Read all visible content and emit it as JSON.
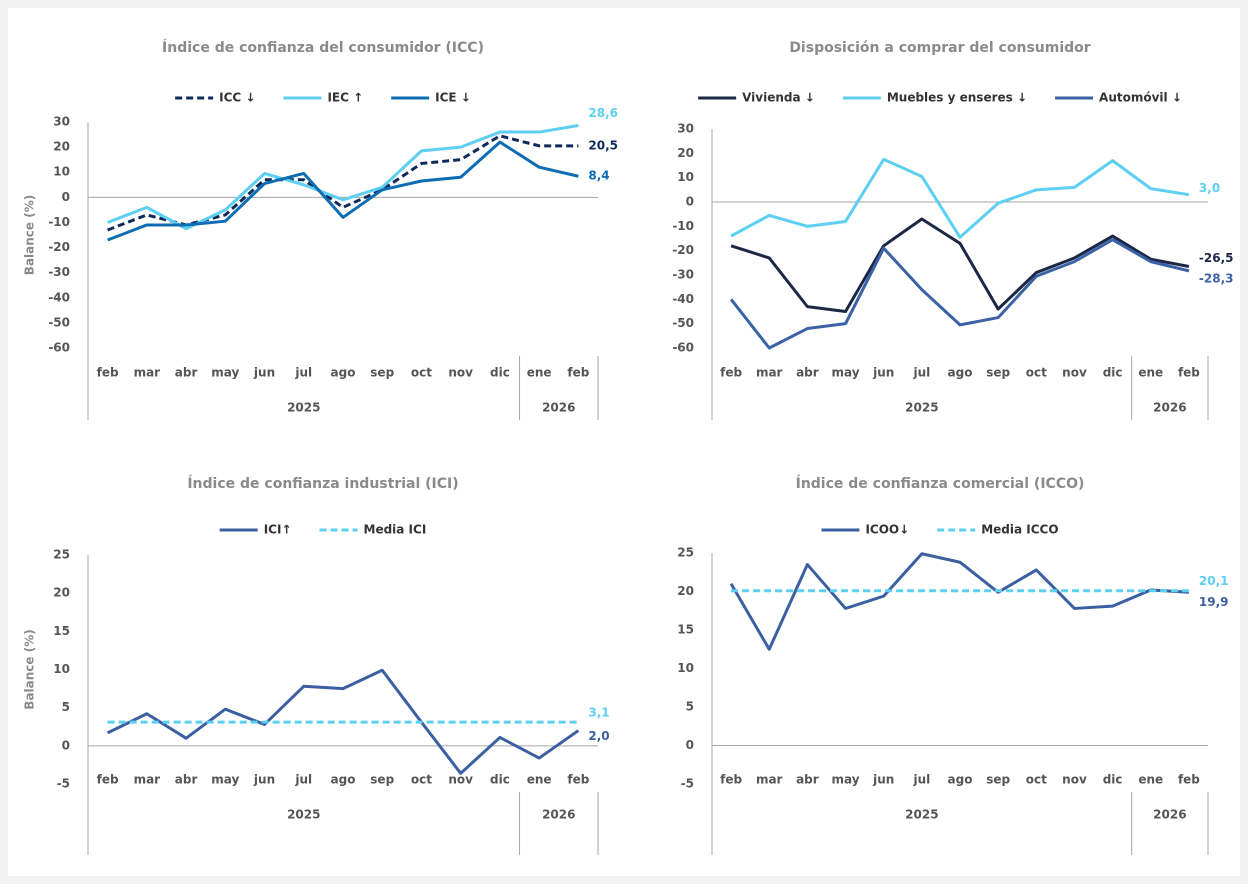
{
  "chart_data": [
    {
      "type": "line",
      "title": "Índice de confianza del consumidor (ICC)",
      "y_label": "Balance (%)",
      "categories": [
        "feb",
        "mar",
        "abr",
        "may",
        "jun",
        "jul",
        "ago",
        "sep",
        "oct",
        "nov",
        "dic",
        "ene",
        "feb"
      ],
      "x_groups": [
        {
          "label": "2025",
          "size": 11
        },
        {
          "label": "2026",
          "size": 2
        }
      ],
      "ylim": [
        -60,
        30
      ],
      "yticks": [
        -60,
        -50,
        -40,
        -30,
        -20,
        -10,
        0,
        10,
        20,
        30
      ],
      "series": [
        {
          "name": "ICC ↓",
          "color": "#0e2a5a",
          "dashed": true,
          "values": [
            -13,
            -7,
            -11,
            -7,
            7,
            7,
            -4,
            3,
            13.5,
            15,
            24.5,
            20.5,
            20.5
          ],
          "value_labels": [
            null,
            null,
            null,
            null,
            null,
            null,
            null,
            null,
            null,
            null,
            null,
            null,
            "20,5"
          ]
        },
        {
          "name": "IEC ↑",
          "color": "#5ccff2",
          "dashed": false,
          "values": [
            -10,
            -4,
            -12.5,
            -5,
            9.5,
            5,
            -1,
            4,
            18.5,
            20,
            26,
            26,
            28.6
          ],
          "value_labels": [
            null,
            null,
            null,
            null,
            null,
            null,
            null,
            null,
            null,
            null,
            null,
            null,
            "28,6"
          ]
        },
        {
          "name": "ICE ↓",
          "color": "#0d6db3",
          "dashed": false,
          "values": [
            -17,
            -11,
            -11,
            -9.5,
            5.5,
            9.5,
            -8,
            3,
            6.5,
            8,
            22,
            12,
            8.4
          ],
          "value_labels": [
            null,
            null,
            null,
            null,
            null,
            null,
            null,
            null,
            null,
            null,
            null,
            null,
            "8,4"
          ]
        }
      ]
    },
    {
      "type": "line",
      "title": "Disposición a comprar del consumidor",
      "categories": [
        "feb",
        "mar",
        "abr",
        "may",
        "jun",
        "jul",
        "ago",
        "sep",
        "oct",
        "nov",
        "dic",
        "ene",
        "feb"
      ],
      "x_groups": [
        {
          "label": "2025",
          "size": 11
        },
        {
          "label": "2026",
          "size": 2
        }
      ],
      "ylim": [
        -60,
        30
      ],
      "yticks": [
        -60,
        -50,
        -40,
        -30,
        -20,
        -10,
        0,
        10,
        20,
        30
      ],
      "series": [
        {
          "name": "Vivienda ↓",
          "color": "#1c2745",
          "dashed": false,
          "values": [
            -18,
            -23,
            -43,
            -45,
            -18,
            -7,
            -17,
            -44,
            -29,
            -23,
            -14,
            -23.5,
            -26.5
          ],
          "value_labels": [
            null,
            null,
            null,
            null,
            null,
            null,
            null,
            null,
            null,
            null,
            null,
            null,
            "-26,5"
          ]
        },
        {
          "name": "Muebles y enseres ↓",
          "color": "#5ccff2",
          "dashed": false,
          "values": [
            -14,
            -5.5,
            -10,
            -8,
            17.5,
            10.5,
            -14.5,
            -0.5,
            5,
            6,
            17,
            5.5,
            3.0
          ],
          "value_labels": [
            null,
            null,
            null,
            null,
            null,
            null,
            null,
            null,
            null,
            null,
            null,
            null,
            "3,0"
          ]
        },
        {
          "name": "Automóvil ↓",
          "color": "#3b62a6",
          "dashed": false,
          "values": [
            -40,
            -60,
            -52,
            -50,
            -19,
            -36,
            -50.5,
            -47.5,
            -30.5,
            -24.5,
            -15.5,
            -24.5,
            -28.3
          ],
          "value_labels": [
            null,
            null,
            null,
            null,
            null,
            null,
            null,
            null,
            null,
            null,
            null,
            null,
            "-28,3"
          ]
        }
      ]
    },
    {
      "type": "line",
      "title": "Índice de confianza industrial (ICI)",
      "y_label": "Balance (%)",
      "categories": [
        "feb",
        "mar",
        "abr",
        "may",
        "jun",
        "jul",
        "ago",
        "sep",
        "oct",
        "nov",
        "dic",
        "ene",
        "feb"
      ],
      "x_groups": [
        {
          "label": "2025",
          "size": 11
        },
        {
          "label": "2026",
          "size": 2
        }
      ],
      "ylim": [
        -5,
        25
      ],
      "yticks": [
        -5,
        0,
        5,
        10,
        15,
        20,
        25
      ],
      "series": [
        {
          "name": "ICI↑",
          "color": "#3b5fa0",
          "dashed": false,
          "values": [
            1.7,
            4.2,
            1.0,
            4.8,
            2.8,
            7.8,
            7.5,
            9.9,
            3.1,
            -3.6,
            1.1,
            -1.6,
            2.0
          ],
          "value_labels": [
            null,
            null,
            null,
            null,
            null,
            null,
            null,
            null,
            null,
            null,
            null,
            null,
            "2,0"
          ]
        },
        {
          "name": "Media ICI",
          "color": "#5ccff2",
          "dashed": true,
          "values": [
            3.1,
            3.1,
            3.1,
            3.1,
            3.1,
            3.1,
            3.1,
            3.1,
            3.1,
            3.1,
            3.1,
            3.1,
            3.1
          ],
          "value_labels": [
            null,
            null,
            null,
            null,
            null,
            null,
            null,
            null,
            null,
            null,
            null,
            null,
            "3,1"
          ]
        }
      ]
    },
    {
      "type": "line",
      "title": "Índice de confianza comercial (ICCO)",
      "categories": [
        "feb",
        "mar",
        "abr",
        "may",
        "jun",
        "jul",
        "ago",
        "sep",
        "oct",
        "nov",
        "dic",
        "ene",
        "feb"
      ],
      "x_groups": [
        {
          "label": "2025",
          "size": 11
        },
        {
          "label": "2026",
          "size": 2
        }
      ],
      "ylim": [
        -5,
        25
      ],
      "yticks": [
        -5,
        0,
        5,
        10,
        15,
        20,
        25
      ],
      "series": [
        {
          "name": "ICOO↓",
          "color": "#3b5fa0",
          "dashed": false,
          "values": [
            21,
            12.5,
            23.5,
            17.8,
            19.4,
            24.9,
            23.8,
            19.9,
            22.8,
            17.8,
            18.1,
            20.2,
            19.9
          ],
          "value_labels": [
            null,
            null,
            null,
            null,
            null,
            null,
            null,
            null,
            null,
            null,
            null,
            null,
            "19,9"
          ]
        },
        {
          "name": "Media ICCO",
          "color": "#5ccff2",
          "dashed": true,
          "values": [
            20.1,
            20.1,
            20.1,
            20.1,
            20.1,
            20.1,
            20.1,
            20.1,
            20.1,
            20.1,
            20.1,
            20.1,
            20.1
          ],
          "value_labels": [
            null,
            null,
            null,
            null,
            null,
            null,
            null,
            null,
            null,
            null,
            null,
            null,
            "20,1"
          ]
        }
      ]
    }
  ]
}
